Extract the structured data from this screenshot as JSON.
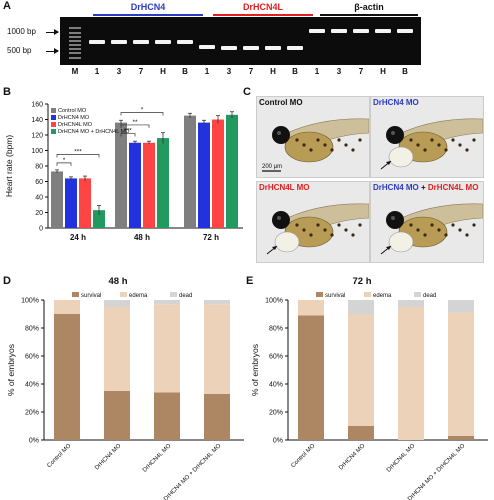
{
  "panels": {
    "A": {
      "letter": "A",
      "groups": [
        {
          "name": "DrHCN4",
          "color": "#2b3cc4"
        },
        {
          "name": "DrHCN4L",
          "color": "#e02020"
        },
        {
          "name": "β-actin",
          "color": "#111111"
        }
      ],
      "markers": [
        "1000 bp",
        "500 bp"
      ],
      "lanes": [
        "M",
        "1",
        "3",
        "7",
        "H",
        "B",
        "1",
        "3",
        "7",
        "H",
        "B",
        "1",
        "3",
        "7",
        "H",
        "B"
      ]
    },
    "B": {
      "letter": "B"
    },
    "C": {
      "letter": "C",
      "images": [
        {
          "caption": [
            {
              "t": "Control MO",
              "c": "#111111"
            }
          ]
        },
        {
          "caption": [
            {
              "t": "DrHCN4 MO",
              "c": "#2b3cc4"
            }
          ]
        },
        {
          "caption": [
            {
              "t": "DrHCN4L MO",
              "c": "#e02020"
            }
          ]
        },
        {
          "caption": [
            {
              "t": "DrHCN4 MO",
              "c": "#2b3cc4"
            },
            {
              "t": " + ",
              "c": "#111111"
            },
            {
              "t": "DrHCN4L MO",
              "c": "#e02020"
            }
          ]
        }
      ],
      "scale_bar": "200 μm"
    },
    "D": {
      "letter": "D"
    },
    "E": {
      "letter": "E"
    }
  },
  "chart_data": [
    {
      "type": "bar",
      "panel": "B",
      "ylabel": "Heart rate (bpm)",
      "ylim": [
        0,
        160
      ],
      "yticks": [
        0,
        20,
        40,
        60,
        80,
        100,
        120,
        140,
        160
      ],
      "categories": [
        "24 h",
        "48 h",
        "72 h"
      ],
      "legend": "top-left",
      "series": [
        {
          "name": "Control MO",
          "color": "#7f7f7f",
          "values": [
            73,
            136,
            145
          ],
          "errors": [
            2,
            3,
            3
          ]
        },
        {
          "name": "DrHCN4 MO",
          "color": "#2233dd",
          "values": [
            64,
            110,
            136
          ],
          "errors": [
            2,
            2,
            3
          ]
        },
        {
          "name": "DrHCN4L MO",
          "color": "#ff4444",
          "values": [
            64,
            110,
            140
          ],
          "errors": [
            3,
            2,
            5
          ]
        },
        {
          "name": "DrHCN4 MO + DrHCN4L MO",
          "color": "#22995e",
          "values": [
            23,
            116,
            146
          ],
          "errors": [
            6,
            7,
            4
          ]
        }
      ],
      "significance": [
        {
          "group": "24 h",
          "label": "*"
        },
        {
          "group": "24 h",
          "label": "***"
        },
        {
          "group": "48 h",
          "label": "***"
        },
        {
          "group": "48 h",
          "label": "**"
        },
        {
          "group": "48 h",
          "label": "*"
        }
      ]
    },
    {
      "type": "bar",
      "stacked": true,
      "panel": "D",
      "title": "48 h",
      "ylabel": "% of embryos",
      "ylim": [
        0,
        100
      ],
      "yticks": [
        "0%",
        "20%",
        "40%",
        "60%",
        "80%",
        "100%"
      ],
      "categories": [
        "Control MO",
        "DrHCN4 MO",
        "DrHCN4L MO",
        "DrHCN4 MO + DrHCN4L MO"
      ],
      "legend": "top",
      "series": [
        {
          "name": "survival",
          "color": "#ad8764",
          "values": [
            90,
            35,
            34,
            33
          ]
        },
        {
          "name": "edema",
          "color": "#ecd2b9",
          "values": [
            10,
            60,
            63,
            64
          ]
        },
        {
          "name": "dead",
          "color": "#d4d4d4",
          "values": [
            0,
            5,
            3,
            3
          ]
        }
      ]
    },
    {
      "type": "bar",
      "stacked": true,
      "panel": "E",
      "title": "72 h",
      "ylabel": "% of embryos",
      "ylim": [
        0,
        100
      ],
      "yticks": [
        "0%",
        "20%",
        "40%",
        "60%",
        "80%",
        "100%"
      ],
      "categories": [
        "Control MO",
        "DrHCN4 MO",
        "DrHCN4L MO",
        "DrHCN4 MO + DrHCN4L MO"
      ],
      "legend": "top",
      "series": [
        {
          "name": "survival",
          "color": "#ad8764",
          "values": [
            89,
            10,
            0,
            3
          ]
        },
        {
          "name": "edema",
          "color": "#ecd2b9",
          "values": [
            11,
            80,
            95,
            88
          ]
        },
        {
          "name": "dead",
          "color": "#d4d4d4",
          "values": [
            0,
            10,
            5,
            9
          ]
        }
      ]
    }
  ]
}
